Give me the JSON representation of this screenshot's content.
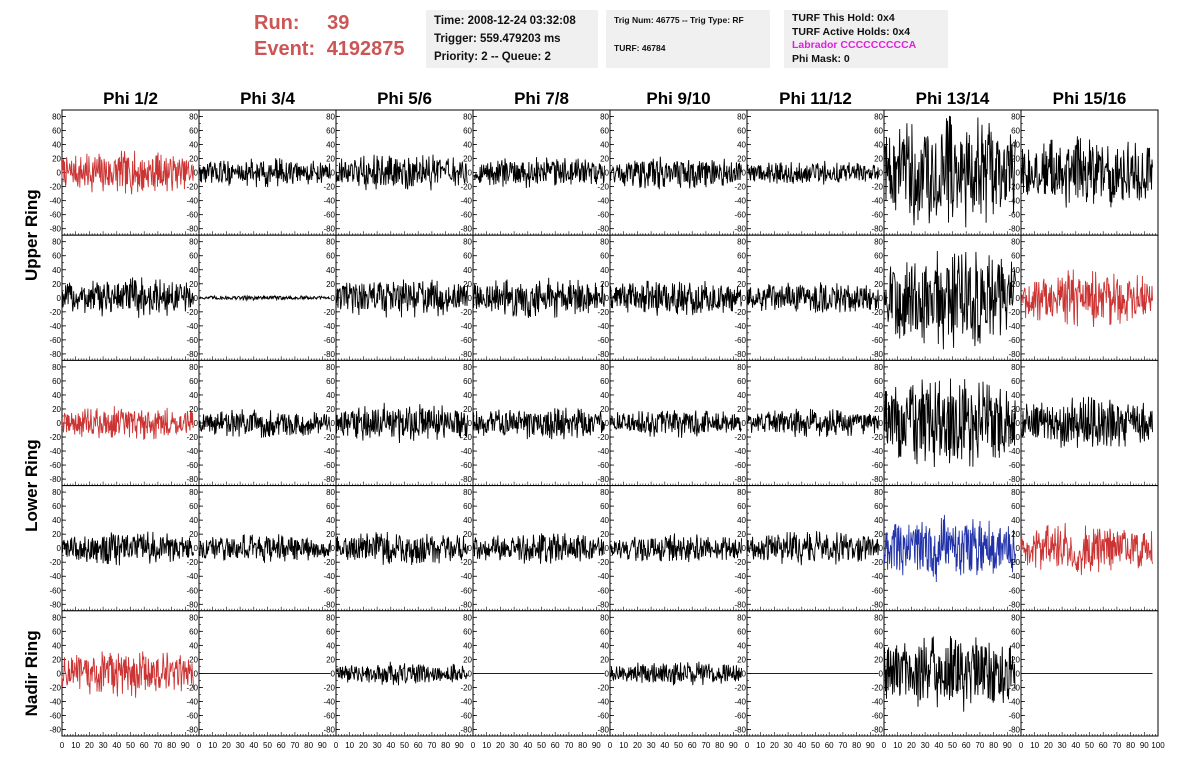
{
  "header": {
    "run_label": "Run:",
    "run_value": "39",
    "event_label": "Event:",
    "event_value": "4192875",
    "time": "Time: 2008-12-24 03:32:08",
    "trigger": "Trigger: 559.479203 ms",
    "priority_queue": "Priority: 2 -- Queue: 2",
    "trig_num_type": "Trig Num: 46775 -- Trig Type: RF",
    "turf_num": "TURF: 46784",
    "turf_this_hold": "TURF This Hold: 0x4",
    "turf_active_holds": "TURF Active Holds: 0x4",
    "labrador": "Labrador CCCCCCCCCA",
    "phi_mask": "Phi Mask: 0"
  },
  "chart_data": {
    "type": "line",
    "columns": [
      "Phi 1/2",
      "Phi 3/4",
      "Phi 5/6",
      "Phi 7/8",
      "Phi 9/10",
      "Phi 11/12",
      "Phi 13/14",
      "Phi 15/16"
    ],
    "ring_labels": [
      {
        "name": "Upper Ring",
        "rows": [
          0,
          1
        ]
      },
      {
        "name": "Lower Ring",
        "rows": [
          2,
          3
        ]
      },
      {
        "name": "Nadir Ring",
        "rows": [
          4
        ]
      }
    ],
    "ylim": [
      -85,
      85
    ],
    "yticks": [
      -80,
      -60,
      -40,
      -20,
      0,
      20,
      40,
      60,
      80
    ],
    "xlim": [
      0,
      100
    ],
    "xticks": [
      0,
      10,
      20,
      30,
      40,
      50,
      60,
      70,
      80,
      90,
      100
    ],
    "colors": {
      "normal": "#000000",
      "triggered": "#cc3333",
      "blue": "#2233aa"
    },
    "traces": [
      [
        {
          "amp": 18,
          "color": "triggered"
        },
        {
          "amp": 12,
          "color": "normal"
        },
        {
          "amp": 16,
          "color": "normal"
        },
        {
          "amp": 13,
          "color": "normal"
        },
        {
          "amp": 14,
          "color": "normal"
        },
        {
          "amp": 10,
          "color": "normal"
        },
        {
          "amp": 48,
          "color": "normal"
        },
        {
          "amp": 30,
          "color": "normal"
        }
      ],
      [
        {
          "amp": 17,
          "color": "normal"
        },
        {
          "amp": 2,
          "color": "normal"
        },
        {
          "amp": 17,
          "color": "normal"
        },
        {
          "amp": 17,
          "color": "normal"
        },
        {
          "amp": 15,
          "color": "normal"
        },
        {
          "amp": 14,
          "color": "normal"
        },
        {
          "amp": 42,
          "color": "normal"
        },
        {
          "amp": 24,
          "color": "triggered"
        }
      ],
      [
        {
          "amp": 14,
          "color": "triggered"
        },
        {
          "amp": 12,
          "color": "normal"
        },
        {
          "amp": 17,
          "color": "normal"
        },
        {
          "amp": 14,
          "color": "normal"
        },
        {
          "amp": 12,
          "color": "normal"
        },
        {
          "amp": 12,
          "color": "normal"
        },
        {
          "amp": 38,
          "color": "normal"
        },
        {
          "amp": 22,
          "color": "normal"
        }
      ],
      [
        {
          "amp": 14,
          "color": "normal"
        },
        {
          "amp": 12,
          "color": "normal"
        },
        {
          "amp": 14,
          "color": "normal"
        },
        {
          "amp": 13,
          "color": "normal"
        },
        {
          "amp": 12,
          "color": "normal"
        },
        {
          "amp": 14,
          "color": "normal"
        },
        {
          "amp": 28,
          "color": "blue"
        },
        {
          "amp": 22,
          "color": "triggered"
        }
      ],
      [
        {
          "amp": 20,
          "color": "triggered"
        },
        {
          "amp": 0,
          "color": "normal"
        },
        {
          "amp": 10,
          "color": "normal"
        },
        {
          "amp": 0,
          "color": "normal"
        },
        {
          "amp": 10,
          "color": "normal"
        },
        {
          "amp": 0,
          "color": "normal"
        },
        {
          "amp": 32,
          "color": "normal"
        },
        {
          "amp": 0,
          "color": "normal"
        }
      ]
    ]
  }
}
